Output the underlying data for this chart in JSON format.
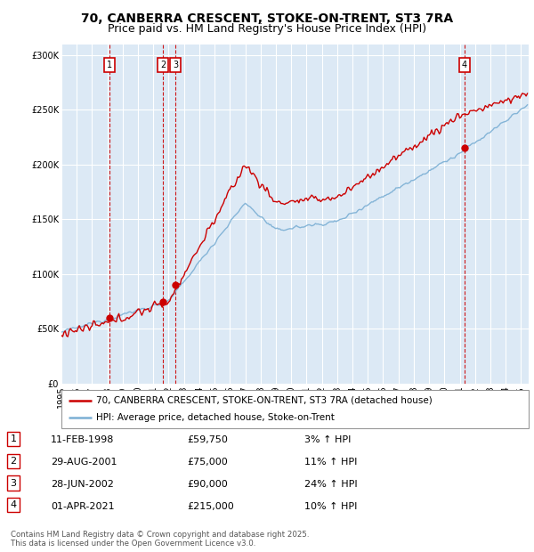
{
  "title": "70, CANBERRA CRESCENT, STOKE-ON-TRENT, ST3 7RA",
  "subtitle": "Price paid vs. HM Land Registry's House Price Index (HPI)",
  "ylim": [
    0,
    310000
  ],
  "yticks": [
    0,
    50000,
    100000,
    150000,
    200000,
    250000,
    300000
  ],
  "ytick_labels": [
    "£0",
    "£50K",
    "£100K",
    "£150K",
    "£200K",
    "£250K",
    "£300K"
  ],
  "background_color": "#ffffff",
  "plot_bg_color": "#dce9f5",
  "grid_color": "#ffffff",
  "hpi_line_color": "#7bafd4",
  "price_line_color": "#cc0000",
  "sale_points": [
    {
      "date": "1998-02-11",
      "price": 59750,
      "label": "1"
    },
    {
      "date": "2001-08-29",
      "price": 75000,
      "label": "2"
    },
    {
      "date": "2002-06-28",
      "price": 90000,
      "label": "3"
    },
    {
      "date": "2021-04-01",
      "price": 215000,
      "label": "4"
    }
  ],
  "legend_entries": [
    "70, CANBERRA CRESCENT, STOKE-ON-TRENT, ST3 7RA (detached house)",
    "HPI: Average price, detached house, Stoke-on-Trent"
  ],
  "table_rows": [
    [
      "1",
      "11-FEB-1998",
      "£59,750",
      "3% ↑ HPI"
    ],
    [
      "2",
      "29-AUG-2001",
      "£75,000",
      "11% ↑ HPI"
    ],
    [
      "3",
      "28-JUN-2002",
      "£90,000",
      "24% ↑ HPI"
    ],
    [
      "4",
      "01-APR-2021",
      "£215,000",
      "10% ↑ HPI"
    ]
  ],
  "footer": "Contains HM Land Registry data © Crown copyright and database right 2025.\nThis data is licensed under the Open Government Licence v3.0.",
  "title_fontsize": 10,
  "subtitle_fontsize": 9,
  "tick_fontsize": 7,
  "table_fontsize": 8
}
